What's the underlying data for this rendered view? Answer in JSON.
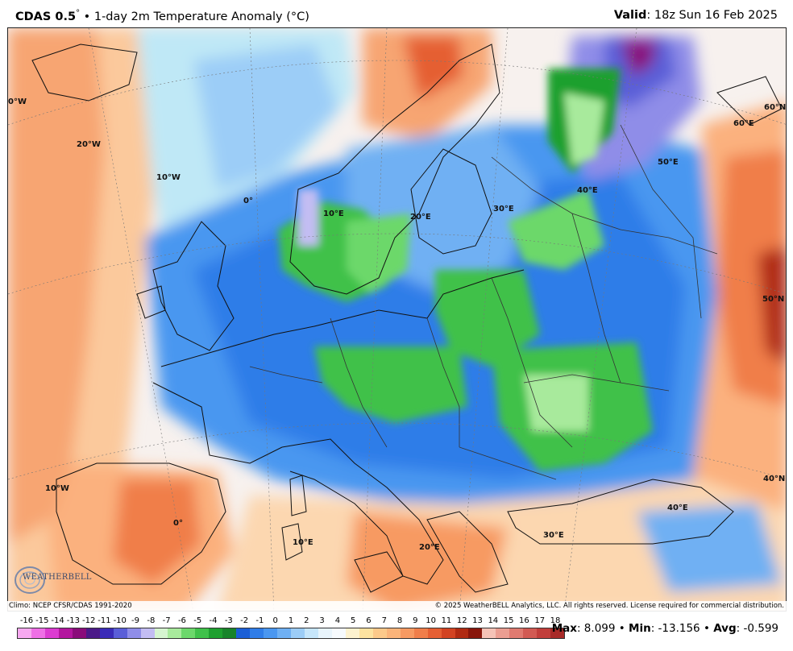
{
  "header": {
    "model": "CDAS 0.5",
    "degree": "°",
    "title_rest": " • 1-day 2m Temperature Anomaly (°C)",
    "valid_label": "Valid",
    "valid_time": ": 18z Sun 16 Feb 2025"
  },
  "map": {
    "longitude_labels": [
      "0°W",
      "20°W",
      "10°W",
      "0°",
      "10°E",
      "20°E",
      "30°E",
      "40°E",
      "50°E",
      "60°E",
      "10°W",
      "0°",
      "10°E",
      "20°E",
      "30°E",
      "40°E"
    ],
    "latitude_labels": [
      "60°N",
      "50°N",
      "40°N"
    ]
  },
  "credits": {
    "climo": "Climo: NCEP CFSR/CDAS 1991-2020",
    "copyright": "© 2025 WeatherBELL Analytics, LLC. All rights reserved. License required for commercial distribution."
  },
  "logo": {
    "text": "WEATHERBELL"
  },
  "colorbar": {
    "ticks": [
      "-16",
      "-15",
      "-14",
      "-13",
      "-12",
      "-11",
      "-10",
      "-9",
      "-8",
      "-7",
      "-6",
      "-5",
      "-4",
      "-3",
      "-2",
      "-1",
      "0",
      "1",
      "2",
      "3",
      "4",
      "5",
      "6",
      "7",
      "8",
      "9",
      "10",
      "11",
      "12",
      "13",
      "14",
      "15",
      "16",
      "17",
      "18"
    ],
    "colors": [
      "#f7a8f0",
      "#ef6fe6",
      "#dc3bd1",
      "#b3169f",
      "#8a0c7a",
      "#4b1a88",
      "#3a2bb8",
      "#5a5ed8",
      "#8f8de8",
      "#c3bdf3",
      "#d6f5d0",
      "#a8ea9c",
      "#6cd86b",
      "#3fc14a",
      "#1ea02f",
      "#18842a",
      "#1b5fd6",
      "#2f7de8",
      "#4a97f0",
      "#6fb0f3",
      "#9ccdf7",
      "#c6e6fb",
      "#e8f4fc",
      "#f6fafd",
      "#fdf2cf",
      "#fde2a0",
      "#fcc98a",
      "#fab47a",
      "#f79a62",
      "#f07e4a",
      "#e55f33",
      "#d24322",
      "#b02a12",
      "#88160b",
      "#f5c3b7",
      "#eb9e92",
      "#e07a70",
      "#d25a53",
      "#c13e3b",
      "#a82a28"
    ]
  },
  "stats": {
    "max_label": "Max",
    "max_value": ": 8.099",
    "min_label": "Min",
    "min_value": ": -13.156",
    "avg_label": "Avg",
    "avg_value": ": -0.599",
    "sep": " • "
  }
}
